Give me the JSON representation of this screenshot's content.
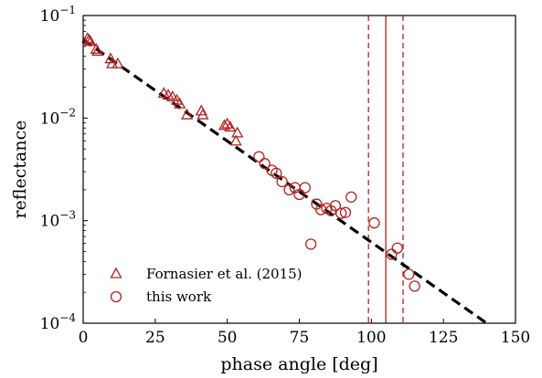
{
  "chart_data": {
    "type": "scatter",
    "xlabel": "phase angle [deg]",
    "ylabel": "reflectance",
    "xlim": [
      0,
      150
    ],
    "ylim": [
      0.0001,
      0.1
    ],
    "yscale": "log",
    "x_ticks": [
      0,
      25,
      50,
      75,
      100,
      125,
      150
    ],
    "x_tick_labels": [
      "0",
      "25",
      "50",
      "75",
      "100",
      "125",
      "150"
    ],
    "y_ticks": [
      0.0001,
      0.001,
      0.01,
      0.1
    ],
    "y_tick_labels": [
      {
        "base": "10",
        "exp": "−4"
      },
      {
        "base": "10",
        "exp": "−3"
      },
      {
        "base": "10",
        "exp": "−2"
      },
      {
        "base": "10",
        "exp": "−1"
      }
    ],
    "grid": false,
    "legend_position": "lower-left",
    "marker_color": "#b22222",
    "series": [
      {
        "name": "Fornasier et al. (2015)",
        "marker": "triangle",
        "points": [
          [
            1.5,
            0.06
          ],
          [
            2.0,
            0.058
          ],
          [
            2.5,
            0.056
          ],
          [
            4.5,
            0.047
          ],
          [
            5.0,
            0.045
          ],
          [
            9.5,
            0.038
          ],
          [
            10.0,
            0.034
          ],
          [
            12.0,
            0.034
          ],
          [
            28.0,
            0.0175
          ],
          [
            29.5,
            0.0168
          ],
          [
            31.0,
            0.0162
          ],
          [
            32.5,
            0.015
          ],
          [
            33.5,
            0.0138
          ],
          [
            36.0,
            0.0108
          ],
          [
            41.0,
            0.0118
          ],
          [
            41.5,
            0.0108
          ],
          [
            49.0,
            0.0085
          ],
          [
            50.0,
            0.0088
          ],
          [
            51.0,
            0.0082
          ],
          [
            53.5,
            0.0072
          ],
          [
            53.0,
            0.006
          ]
        ]
      },
      {
        "name": "this work",
        "marker": "circle",
        "points": [
          [
            61.0,
            0.0042
          ],
          [
            63.0,
            0.0036
          ],
          [
            65.5,
            0.0031
          ],
          [
            67.0,
            0.0029
          ],
          [
            69.0,
            0.0024
          ],
          [
            71.5,
            0.002
          ],
          [
            73.5,
            0.0021
          ],
          [
            75.0,
            0.0018
          ],
          [
            77.0,
            0.0021
          ],
          [
            79.0,
            0.00059
          ],
          [
            81.0,
            0.00145
          ],
          [
            82.5,
            0.00128
          ],
          [
            84.5,
            0.00132
          ],
          [
            86.0,
            0.00125
          ],
          [
            87.5,
            0.0014
          ],
          [
            89.5,
            0.00118
          ],
          [
            91.0,
            0.0012
          ],
          [
            93.0,
            0.0017
          ],
          [
            101.0,
            0.00095
          ],
          [
            107.0,
            0.00047
          ],
          [
            109.0,
            0.00054
          ],
          [
            113.0,
            0.0003
          ],
          [
            115.0,
            0.00023
          ]
        ]
      }
    ],
    "fit_line": {
      "style": "dashed",
      "color": "#000000",
      "points": [
        [
          0,
          0.058
        ],
        [
          140,
          0.0001
        ]
      ]
    },
    "vertical_lines": [
      {
        "x": 99,
        "style": "dashed",
        "color": "#b22222"
      },
      {
        "x": 105,
        "style": "solid",
        "color": "#b22222"
      },
      {
        "x": 111,
        "style": "dashed",
        "color": "#b22222"
      }
    ]
  }
}
